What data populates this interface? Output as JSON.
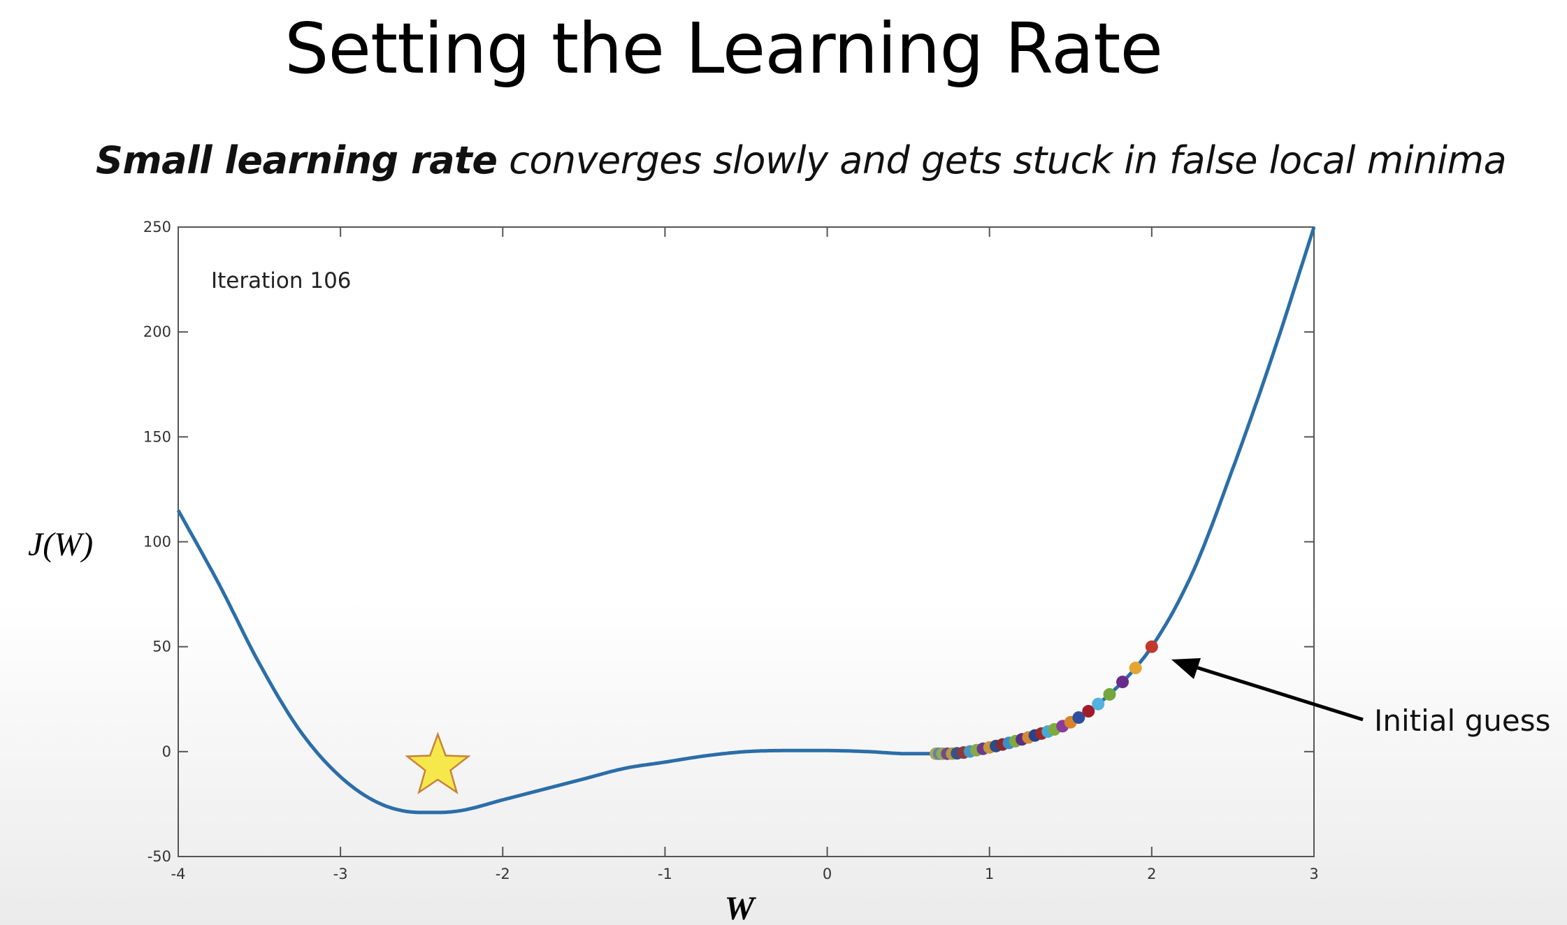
{
  "slide": {
    "title": "Setting the Learning Rate",
    "subtitle_bold": "Small learning rate",
    "subtitle_rest": " converges slowly and gets stuck in false local minima"
  },
  "chart_data": {
    "type": "line",
    "xlabel": "W",
    "ylabel": "J(W)",
    "xlim": [
      -4,
      3
    ],
    "ylim": [
      -50,
      250
    ],
    "x_ticks": [
      -4,
      -3,
      -2,
      -1,
      0,
      1,
      2,
      3
    ],
    "y_ticks": [
      -50,
      0,
      50,
      100,
      150,
      200,
      250
    ],
    "grid": false,
    "curve": {
      "x": [
        -4,
        -3.75,
        -3.5,
        -3.25,
        -3,
        -2.75,
        -2.5,
        -2.4,
        -2.25,
        -2,
        -1.75,
        -1.5,
        -1.25,
        -1,
        -0.75,
        -0.5,
        -0.25,
        0,
        0.25,
        0.5,
        0.75,
        1,
        1.25,
        1.5,
        1.75,
        2,
        2.25,
        2.5,
        2.75,
        3
      ],
      "y": [
        115,
        80,
        42,
        10,
        -12,
        -25,
        -29,
        -29,
        -28,
        -23,
        -18,
        -13,
        -8,
        -5,
        -2,
        0,
        0.5,
        0.5,
        0,
        -1,
        -1,
        2,
        7,
        14,
        28,
        50,
        85,
        135,
        190,
        250
      ]
    },
    "iterates": {
      "x": [
        2.0,
        1.9,
        1.82,
        1.74,
        1.67,
        1.61,
        1.55,
        1.5,
        1.45,
        1.4,
        1.36,
        1.32,
        1.28,
        1.24,
        1.2,
        1.16,
        1.12,
        1.08,
        1.04,
        1.0,
        0.96,
        0.92,
        0.88,
        0.84,
        0.8,
        0.77,
        0.74,
        0.71,
        0.69,
        0.67
      ],
      "colors": [
        "#c0392b",
        "#e6a532",
        "#6a2c8a",
        "#72a83c",
        "#52b2e0",
        "#a01c2c",
        "#2d4f9e",
        "#d9842a",
        "#8a3c9c",
        "#7fab3b",
        "#4aa8d6",
        "#9c2a2a",
        "#24458e",
        "#d48a32",
        "#5a2e82",
        "#80a844",
        "#3b8ec9",
        "#8c2b2b",
        "#2e4a8a",
        "#c9953a",
        "#6a3b8a",
        "#88a84a",
        "#4596c4",
        "#8e3a3a",
        "#3a5283",
        "#b59b48",
        "#6e4e88",
        "#9aa65a",
        "#5b88a4",
        "#b4a35a"
      ]
    },
    "star_x": -2.4,
    "star_y": -7,
    "annotations": {
      "iteration": "Iteration 106",
      "initial_guess": "Initial guess"
    }
  }
}
